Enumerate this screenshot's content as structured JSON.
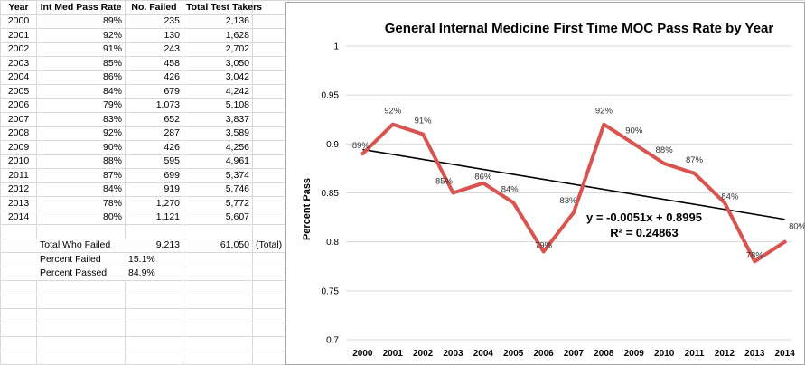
{
  "sheet": {
    "headers": {
      "year": "Year",
      "pass_rate": "Int Med Pass Rate",
      "failed": "No. Failed",
      "takers": "Total Test Takers"
    },
    "rows": [
      {
        "year": "2000",
        "pass_rate": "89%",
        "failed": "235",
        "takers": "2,136"
      },
      {
        "year": "2001",
        "pass_rate": "92%",
        "failed": "130",
        "takers": "1,628"
      },
      {
        "year": "2002",
        "pass_rate": "91%",
        "failed": "243",
        "takers": "2,702"
      },
      {
        "year": "2003",
        "pass_rate": "85%",
        "failed": "458",
        "takers": "3,050"
      },
      {
        "year": "2004",
        "pass_rate": "86%",
        "failed": "426",
        "takers": "3,042"
      },
      {
        "year": "2005",
        "pass_rate": "84%",
        "failed": "679",
        "takers": "4,242"
      },
      {
        "year": "2006",
        "pass_rate": "79%",
        "failed": "1,073",
        "takers": "5,108"
      },
      {
        "year": "2007",
        "pass_rate": "83%",
        "failed": "652",
        "takers": "3,837"
      },
      {
        "year": "2008",
        "pass_rate": "92%",
        "failed": "287",
        "takers": "3,589"
      },
      {
        "year": "2009",
        "pass_rate": "90%",
        "failed": "426",
        "takers": "4,256"
      },
      {
        "year": "2010",
        "pass_rate": "88%",
        "failed": "595",
        "takers": "4,961"
      },
      {
        "year": "2011",
        "pass_rate": "87%",
        "failed": "699",
        "takers": "5,374"
      },
      {
        "year": "2012",
        "pass_rate": "84%",
        "failed": "919",
        "takers": "5,746"
      },
      {
        "year": "2013",
        "pass_rate": "78%",
        "failed": "1,270",
        "takers": "5,772"
      },
      {
        "year": "2014",
        "pass_rate": "80%",
        "failed": "1,121",
        "takers": "5,607"
      }
    ],
    "summary": {
      "total_who_failed_label": "Total Who Failed",
      "total_who_failed_value": "9,213",
      "total_takers_value": "61,050",
      "total_note": "(Total)",
      "percent_failed_label": "Percent Failed",
      "percent_failed_value": "15.1%",
      "percent_passed_label": "Percent Passed",
      "percent_passed_value": "84.9%"
    }
  },
  "chart_data": {
    "type": "line",
    "title": "General Internal Medicine First Time MOC Pass Rate by Year",
    "xlabel": "",
    "ylabel": "Percent Pass",
    "x": [
      "2000",
      "2001",
      "2002",
      "2003",
      "2004",
      "2005",
      "2006",
      "2007",
      "2008",
      "2009",
      "2010",
      "2011",
      "2012",
      "2013",
      "2014"
    ],
    "series": [
      {
        "values": [
          0.89,
          0.92,
          0.91,
          0.85,
          0.86,
          0.84,
          0.79,
          0.83,
          0.92,
          0.9,
          0.88,
          0.87,
          0.84,
          0.78,
          0.8
        ],
        "data_labels": [
          "89%",
          "92%",
          "91%",
          "85%",
          "86%",
          "84%",
          "79%",
          "83%",
          "92%",
          "90%",
          "88%",
          "87%",
          "84%",
          "78%",
          "80%"
        ],
        "color": "#d9534f"
      }
    ],
    "trendline": {
      "slope": -0.0051,
      "intercept": 0.8995,
      "equation": "y = -0.0051x + 0.8995",
      "r_squared": "R² = 0.24863",
      "color": "#000000"
    },
    "ylim": [
      0.7,
      1
    ],
    "yticks": [
      "1",
      "0.95",
      "0.9",
      "0.85",
      "0.8",
      "0.75",
      "0.7"
    ],
    "ytick_values": [
      1,
      0.95,
      0.9,
      0.85,
      0.8,
      0.75,
      0.7
    ],
    "grid": true,
    "legend": "none"
  }
}
